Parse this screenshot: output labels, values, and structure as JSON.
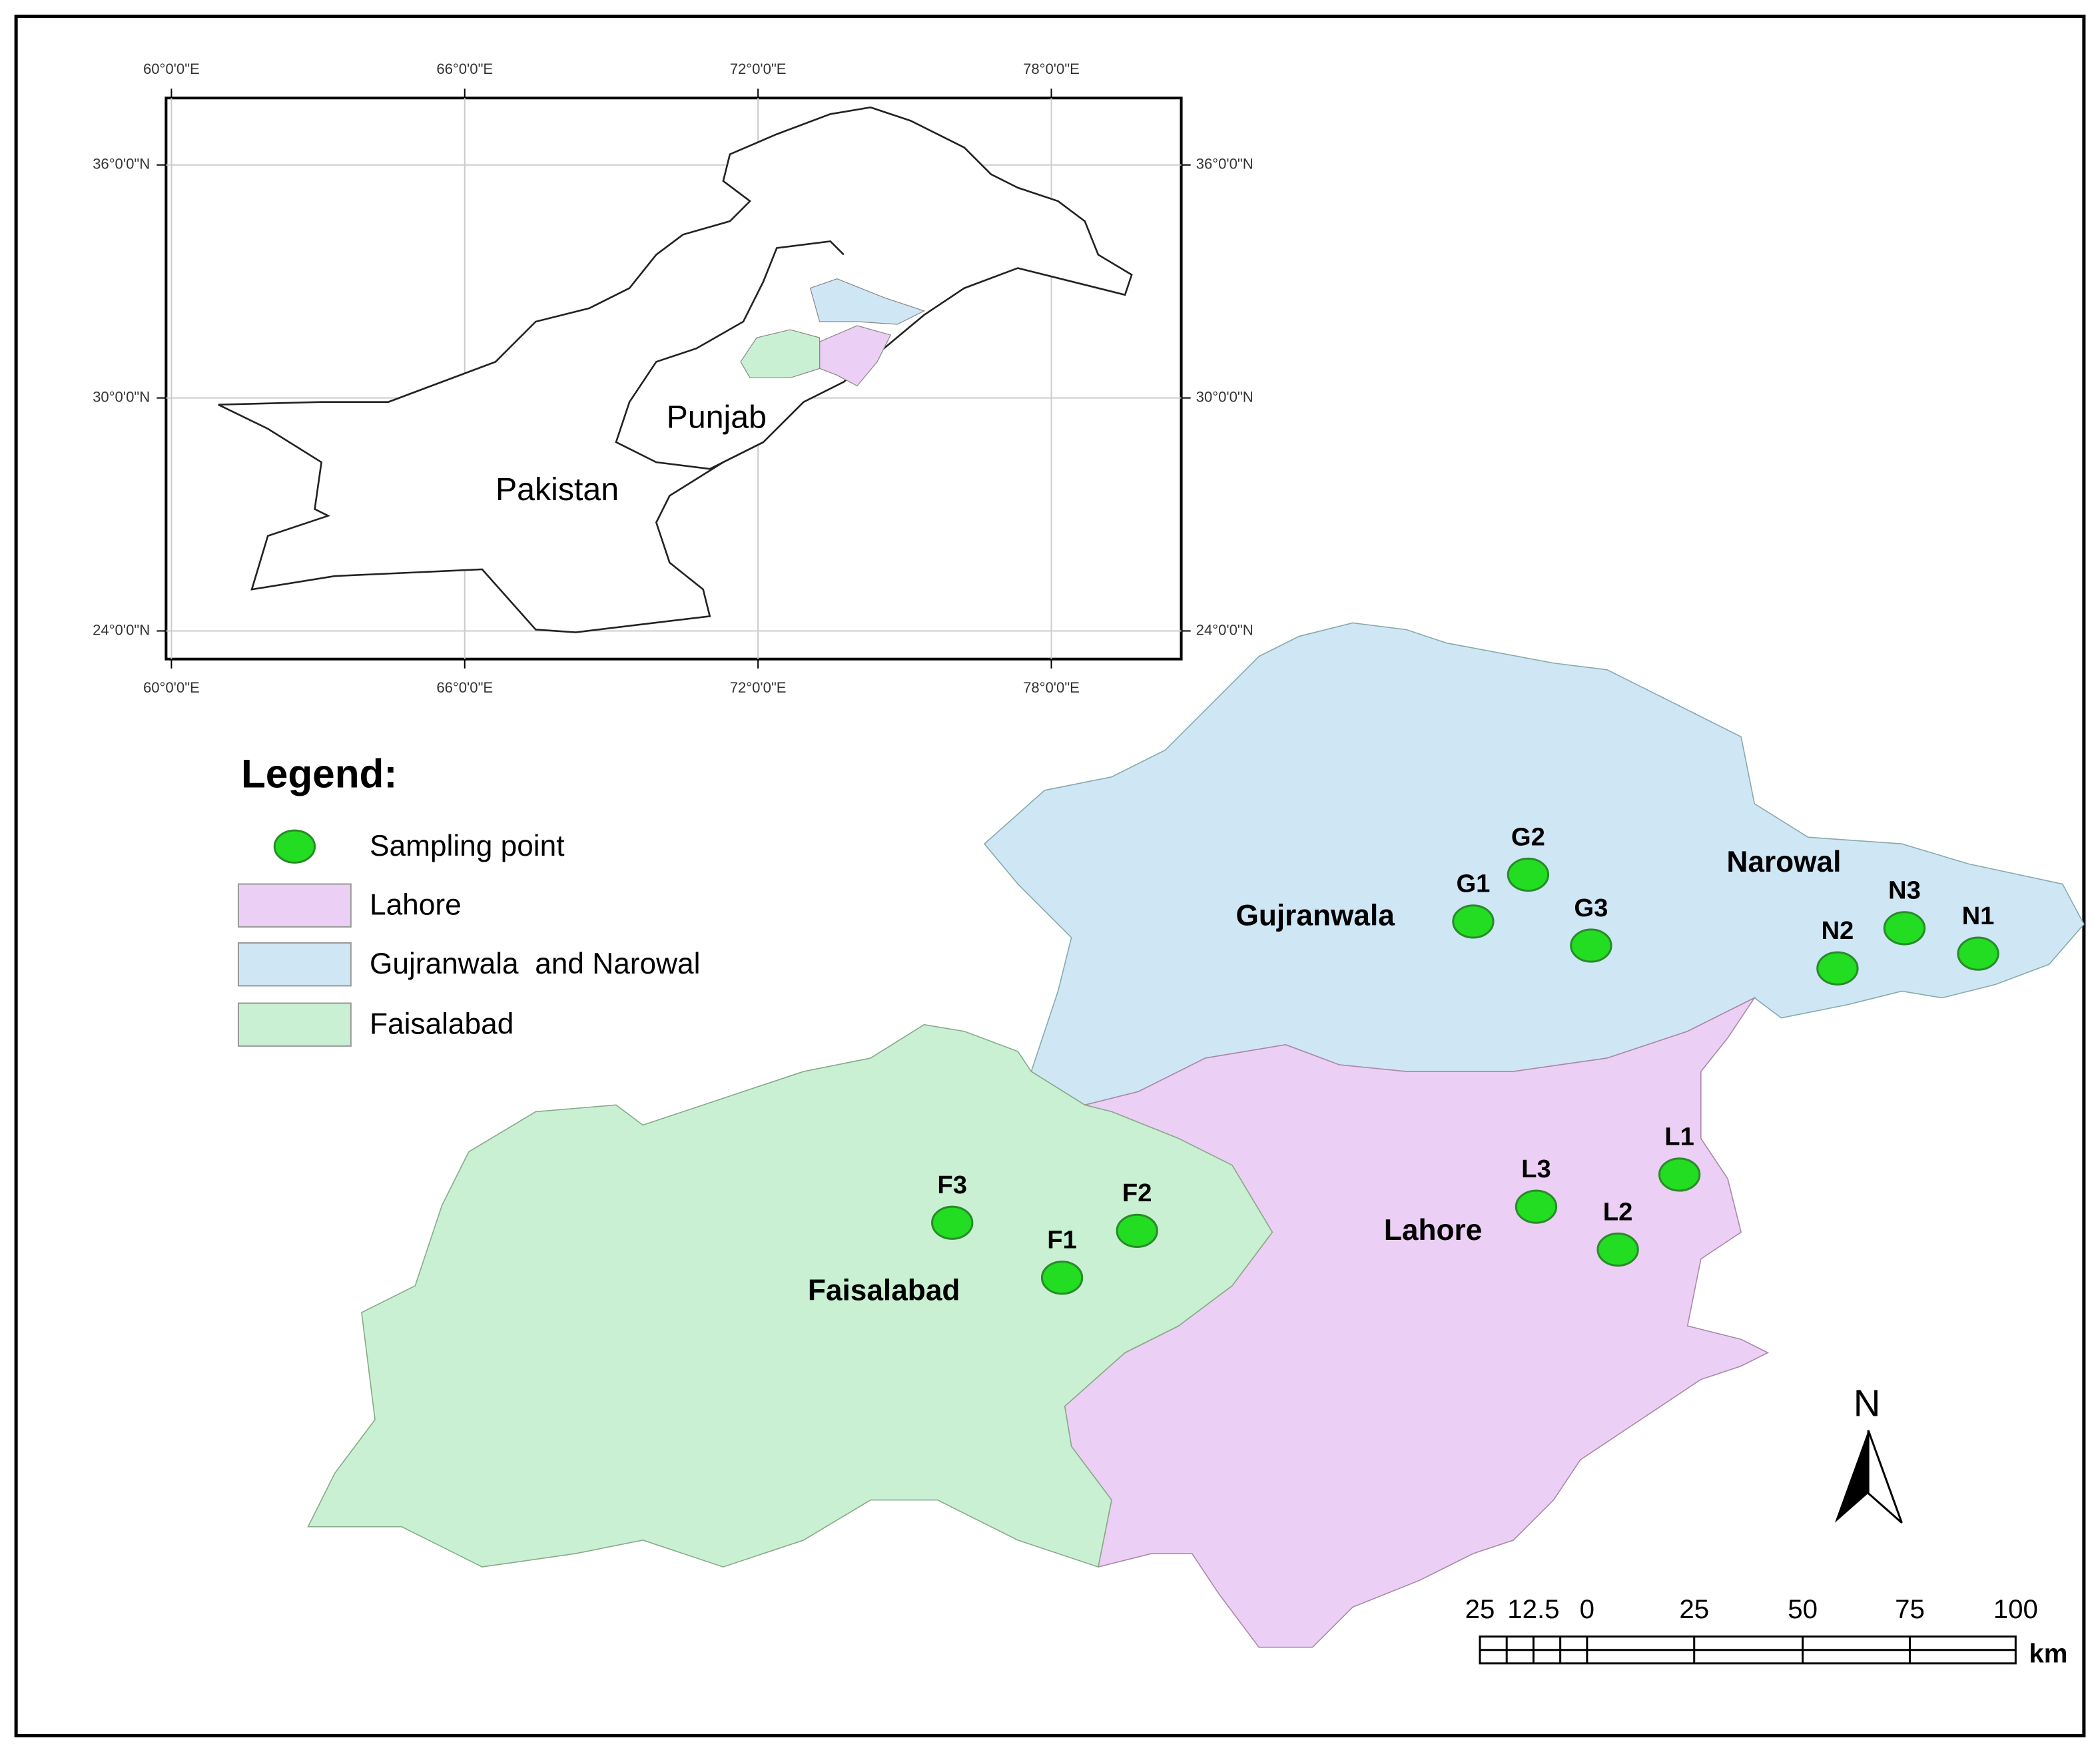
{
  "inset_map": {
    "longitude_labels": [
      "60°0'0\"E",
      "66°0'0\"E",
      "72°0'0\"E",
      "78°0'0\"E"
    ],
    "latitude_labels": [
      "36°0'0\"N",
      "30°0'0\"N",
      "24°0'0\"N"
    ],
    "place_labels": [
      "Punjab",
      "Pakistan"
    ]
  },
  "legend": {
    "title": "Legend:",
    "items": [
      "Sampling point",
      "Lahore",
      "Gujranwala  and Narowal",
      "Faisalabad"
    ]
  },
  "regions": [
    "Gujranwala",
    "Narowal",
    "Lahore",
    "Faisalabad"
  ],
  "sampling_points": [
    "G1",
    "G2",
    "G3",
    "N1",
    "N2",
    "N3",
    "L1",
    "L2",
    "L3",
    "F1",
    "F2",
    "F3"
  ],
  "north_arrow": "N",
  "scale_bar": {
    "labels": [
      "25",
      "12.5",
      "0",
      "25",
      "50",
      "75",
      "100"
    ],
    "unit": "km"
  }
}
